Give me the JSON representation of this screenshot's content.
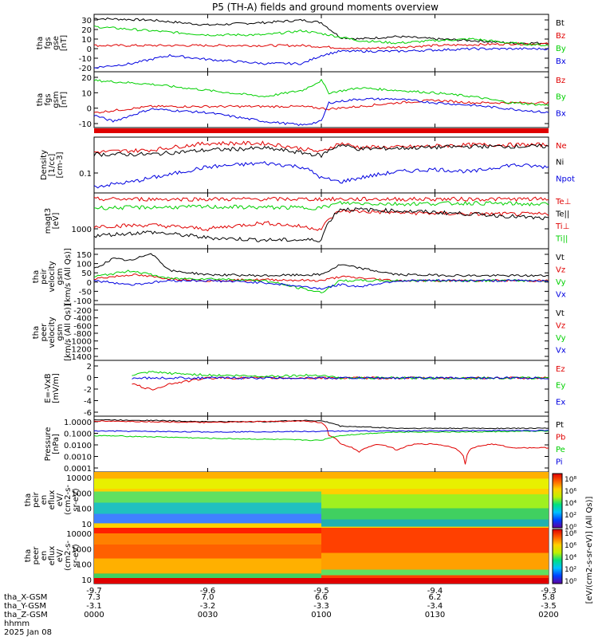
{
  "title": "P5 (TH-A) fields and ground moments overview",
  "colors": {
    "black": "#000000",
    "red": "#e00000",
    "green": "#00d000",
    "blue": "#0000e0"
  },
  "time_axis": {
    "ticks": [
      {
        "x_gsm": "-9.7",
        "y_gsm": "7.3",
        "z_gsm": "-3.1",
        "hhmm": "0000"
      },
      {
        "x_gsm": "-9.6",
        "y_gsm": "7.0",
        "z_gsm": "-3.2",
        "hhmm": "0030"
      },
      {
        "x_gsm": "-9.5",
        "y_gsm": "6.6",
        "z_gsm": "-3.3",
        "hhmm": "0100"
      },
      {
        "x_gsm": "-9.4",
        "y_gsm": "6.2",
        "z_gsm": "-3.4",
        "hhmm": "0130"
      },
      {
        "x_gsm": "-9.3",
        "y_gsm": "5.8",
        "z_gsm": "-3.5",
        "hhmm": "0200"
      }
    ],
    "row_labels": [
      "tha_X-GSM",
      "tha_Y-GSM",
      "tha_Z-GSM",
      "hhmm",
      "2025 Jan 08"
    ]
  },
  "colorbar": {
    "label": "[eV/(cm2-s-sr-eV)] (All Qs)]",
    "upper_ticks": [
      "10⁸",
      "10⁶",
      "10⁴",
      "10²",
      "10⁰"
    ],
    "lower_ticks": [
      "10⁸",
      "10⁶",
      "10⁴",
      "10²",
      "10⁰"
    ]
  },
  "panels": [
    {
      "id": "fgs_gse",
      "ylabel": [
        "tha",
        "fgs",
        "gse",
        "[nT]"
      ],
      "yticks": [
        "30",
        "20",
        "10",
        "0",
        "-10",
        "-20"
      ],
      "legend": [
        {
          "text": "Bt",
          "color": "black"
        },
        {
          "text": "Bz",
          "color": "red"
        },
        {
          "text": "By",
          "color": "green"
        },
        {
          "text": "Bx",
          "color": "blue"
        }
      ]
    },
    {
      "id": "fgs_gsm",
      "ylabel": [
        "tha",
        "fgs",
        "gsm",
        "[nT]"
      ],
      "yticks": [
        "20",
        "10",
        "0",
        "-10"
      ],
      "legend": [
        {
          "text": "Bz",
          "color": "red"
        },
        {
          "text": "By",
          "color": "green"
        },
        {
          "text": "Bx",
          "color": "blue"
        }
      ]
    },
    {
      "id": "density",
      "ylabel": [
        "Density",
        "[1/cc]",
        "[cm-3]"
      ],
      "yticks": [
        "0.1"
      ],
      "legend": [
        {
          "text": "Ne",
          "color": "red"
        },
        {
          "text": "Ni",
          "color": "black"
        },
        {
          "text": "Npot",
          "color": "blue"
        }
      ]
    },
    {
      "id": "temp",
      "ylabel": [
        "magt3",
        "[eV]"
      ],
      "yticks": [
        "1000"
      ],
      "legend": [
        {
          "text": "Te⊥",
          "color": "red"
        },
        {
          "text": "Te||",
          "color": "black"
        },
        {
          "text": "Ti⊥",
          "color": "red"
        },
        {
          "text": "Ti||",
          "color": "green"
        }
      ]
    },
    {
      "id": "peir_vel",
      "ylabel": [
        "tha",
        "peir",
        "velocity",
        "gsm",
        "[km/s (All Qs)]"
      ],
      "yticks": [
        "150",
        "100",
        "50",
        "0",
        "-50",
        "-100"
      ],
      "legend": [
        {
          "text": "Vt",
          "color": "black"
        },
        {
          "text": "Vz",
          "color": "red"
        },
        {
          "text": "Vy",
          "color": "green"
        },
        {
          "text": "Vx",
          "color": "blue"
        }
      ]
    },
    {
      "id": "peer_vel",
      "ylabel": [
        "tha",
        "peer",
        "velocity",
        "gsm",
        "[km/s (All Qs)]"
      ],
      "yticks": [
        "-200",
        "-400",
        "-600",
        "-800",
        "-1000",
        "-1200",
        "-1400"
      ],
      "legend": [
        {
          "text": "Vt",
          "color": "black"
        },
        {
          "text": "Vz",
          "color": "red"
        },
        {
          "text": "Vy",
          "color": "green"
        },
        {
          "text": "Vx",
          "color": "blue"
        }
      ]
    },
    {
      "id": "efield",
      "ylabel": [
        "E=-VxB",
        "[mV/m]"
      ],
      "yticks": [
        "2",
        "0",
        "-2",
        "-4",
        "-6"
      ],
      "legend": [
        {
          "text": "Ez",
          "color": "red"
        },
        {
          "text": "Ey",
          "color": "green"
        },
        {
          "text": "Ex",
          "color": "blue"
        }
      ]
    },
    {
      "id": "pressure",
      "ylabel": [
        "Pressure",
        "[nPa]"
      ],
      "yticks": [
        "1.0000",
        "0.1000",
        "0.0100",
        "0.0010",
        "0.0001"
      ],
      "legend": [
        {
          "text": "Pt",
          "color": "black"
        },
        {
          "text": "Pb",
          "color": "red"
        },
        {
          "text": "Pe",
          "color": "green"
        },
        {
          "text": "Pi",
          "color": "blue"
        }
      ]
    },
    {
      "id": "peir_en",
      "ylabel": [
        "tha",
        "peir",
        "en",
        "eflux",
        "eV/",
        "(cm2-s-",
        "sr-eV)"
      ],
      "yticks": [
        "10000",
        "1000",
        "100",
        "10"
      ],
      "legend": []
    },
    {
      "id": "peer_en",
      "ylabel": [
        "tha",
        "peer",
        "en",
        "eflux",
        "eV/",
        "(cm2-s-",
        "sr-eV)"
      ],
      "yticks": [
        "10000",
        "1000",
        "100",
        "10"
      ],
      "legend": []
    }
  ],
  "chart_data": [
    {
      "type": "line",
      "panel": "fgs_gse",
      "ylim": [
        -30,
        40
      ],
      "series": [
        {
          "name": "Bt",
          "color": "black",
          "x": [
            0,
            15,
            30,
            45,
            55,
            60,
            65,
            70,
            80,
            90,
            100,
            110,
            120
          ],
          "values": [
            35,
            33,
            27,
            30,
            33,
            30,
            12,
            10,
            13,
            10,
            8,
            5,
            5
          ]
        },
        {
          "name": "Bz",
          "color": "red",
          "x": [
            0,
            30,
            55,
            62,
            70,
            80,
            90,
            100,
            110,
            120
          ],
          "values": [
            2,
            2,
            2,
            0,
            -2,
            0,
            2,
            3,
            4,
            4
          ]
        },
        {
          "name": "By",
          "color": "green",
          "x": [
            0,
            15,
            30,
            45,
            55,
            62,
            70,
            80,
            90,
            100,
            110,
            120
          ],
          "values": [
            25,
            20,
            15,
            15,
            20,
            15,
            8,
            5,
            8,
            10,
            5,
            2
          ]
        },
        {
          "name": "Bx",
          "color": "blue",
          "x": [
            0,
            10,
            20,
            30,
            45,
            55,
            60,
            65,
            80,
            100,
            120
          ],
          "values": [
            -25,
            -20,
            -10,
            -15,
            -20,
            -20,
            -10,
            -5,
            -5,
            -2,
            -2
          ]
        }
      ]
    },
    {
      "type": "line",
      "panel": "fgs_gsm",
      "ylim": [
        -20,
        25
      ],
      "series": [
        {
          "name": "Bz",
          "color": "red",
          "x": [
            0,
            15,
            30,
            55,
            62,
            70,
            80,
            90,
            100,
            110,
            120
          ],
          "values": [
            -8,
            -3,
            -3,
            -3,
            -5,
            -3,
            0,
            2,
            0,
            0,
            0
          ]
        },
        {
          "name": "By",
          "color": "green",
          "x": [
            0,
            15,
            30,
            45,
            55,
            60,
            62,
            70,
            80,
            90,
            100,
            110,
            120
          ],
          "values": [
            18,
            15,
            10,
            5,
            10,
            18,
            8,
            12,
            10,
            8,
            5,
            0,
            -2
          ]
        },
        {
          "name": "Bx",
          "color": "blue",
          "x": [
            0,
            5,
            15,
            30,
            45,
            55,
            60,
            62,
            70,
            80,
            90,
            100,
            110,
            120
          ],
          "values": [
            -10,
            -15,
            -5,
            -8,
            -15,
            -18,
            -15,
            0,
            3,
            3,
            0,
            -2,
            -5,
            -8
          ]
        }
      ]
    },
    {
      "type": "line",
      "panel": "density",
      "ylim": [
        0.03,
        0.4
      ],
      "scale": "log",
      "series": [
        {
          "name": "Ne",
          "color": "red",
          "x": [
            0,
            15,
            30,
            45,
            60,
            65,
            70,
            80,
            100,
            120
          ],
          "values": [
            0.2,
            0.22,
            0.3,
            0.3,
            0.2,
            0.3,
            0.25,
            0.25,
            0.28,
            0.28
          ]
        },
        {
          "name": "Ni",
          "color": "black",
          "x": [
            0,
            15,
            30,
            45,
            60,
            65,
            70,
            80,
            100,
            120
          ],
          "values": [
            0.18,
            0.18,
            0.22,
            0.24,
            0.17,
            0.28,
            0.23,
            0.24,
            0.26,
            0.26
          ]
        },
        {
          "name": "Npot",
          "color": "blue",
          "x": [
            0,
            10,
            20,
            30,
            45,
            55,
            60,
            65,
            80,
            90,
            100,
            110,
            120
          ],
          "values": [
            0.04,
            0.05,
            0.07,
            0.1,
            0.12,
            0.1,
            0.06,
            0.05,
            0.08,
            0.09,
            0.08,
            0.11,
            0.1
          ]
        }
      ]
    },
    {
      "type": "line",
      "panel": "temp",
      "ylim": [
        600,
        8000
      ],
      "scale": "log",
      "series": [
        {
          "name": "Te⊥",
          "color": "red",
          "x": [
            0,
            15,
            30,
            45,
            60,
            65,
            80,
            100,
            120
          ],
          "values": [
            1700,
            1800,
            1500,
            2000,
            1500,
            3500,
            3200,
            3000,
            3000
          ]
        },
        {
          "name": "Te||",
          "color": "black",
          "x": [
            0,
            15,
            30,
            45,
            60,
            65,
            80,
            100,
            120
          ],
          "values": [
            1100,
            1300,
            1000,
            900,
            900,
            3800,
            3500,
            3000,
            2400
          ]
        },
        {
          "name": "Ti⊥",
          "color": "red",
          "x": [
            0,
            30,
            60,
            120
          ],
          "values": [
            6000,
            6000,
            6000,
            6000
          ]
        },
        {
          "name": "Ti||",
          "color": "green",
          "x": [
            0,
            30,
            60,
            65,
            80,
            100,
            120
          ],
          "values": [
            4000,
            4200,
            4000,
            5000,
            4800,
            5000,
            4700
          ]
        }
      ]
    },
    {
      "type": "line",
      "panel": "peir_vel",
      "ylim": [
        -120,
        160
      ],
      "series": [
        {
          "name": "Vt",
          "color": "black",
          "x": [
            0,
            5,
            10,
            15,
            20,
            30,
            45,
            60,
            65,
            80,
            100,
            120
          ],
          "values": [
            60,
            110,
            100,
            140,
            50,
            30,
            25,
            30,
            80,
            30,
            25,
            25
          ]
        },
        {
          "name": "Vz",
          "color": "red",
          "x": [
            0,
            10,
            20,
            30,
            45,
            60,
            65,
            80,
            100,
            120
          ],
          "values": [
            10,
            30,
            10,
            0,
            5,
            0,
            20,
            0,
            0,
            0
          ]
        },
        {
          "name": "Vy",
          "color": "green",
          "x": [
            0,
            10,
            20,
            30,
            45,
            60,
            65,
            80,
            100,
            120
          ],
          "values": [
            20,
            50,
            10,
            10,
            0,
            -60,
            0,
            0,
            0,
            0
          ]
        },
        {
          "name": "Vx",
          "color": "blue",
          "x": [
            0,
            10,
            20,
            30,
            45,
            60,
            65,
            70,
            80,
            100,
            120
          ],
          "values": [
            0,
            -20,
            0,
            0,
            -10,
            -40,
            -20,
            -30,
            0,
            0,
            0
          ]
        }
      ]
    },
    {
      "type": "line",
      "panel": "peer_vel",
      "ylim": [
        -1400,
        0
      ],
      "series": []
    },
    {
      "type": "line",
      "panel": "efield",
      "ylim": [
        -6.5,
        3
      ],
      "series": [
        {
          "name": "Ez",
          "color": "red",
          "x": [
            10,
            15,
            20,
            30,
            45,
            60,
            65,
            80,
            100,
            120
          ],
          "values": [
            -1,
            -2,
            -1,
            0,
            0,
            0,
            0,
            0,
            0,
            0
          ]
        },
        {
          "name": "Ey",
          "color": "green",
          "x": [
            10,
            15,
            20,
            30,
            45,
            60,
            65,
            80,
            100,
            120
          ],
          "values": [
            0.5,
            1,
            0.8,
            0.5,
            0.3,
            0.5,
            0,
            0,
            0,
            0
          ]
        },
        {
          "name": "Ex",
          "color": "blue",
          "x": [
            10,
            30,
            60,
            120
          ],
          "values": [
            0,
            0,
            0,
            0
          ]
        }
      ]
    },
    {
      "type": "line",
      "panel": "pressure",
      "ylim": [
        5e-05,
        2
      ],
      "scale": "log",
      "series": [
        {
          "name": "Pt",
          "color": "black",
          "x": [
            0,
            15,
            30,
            45,
            55,
            60,
            65,
            80,
            100,
            120
          ],
          "values": [
            1,
            0.9,
            0.7,
            0.7,
            0.9,
            0.8,
            0.3,
            0.2,
            0.2,
            0.2
          ]
        },
        {
          "name": "Pb",
          "color": "red",
          "x": [
            0,
            30,
            55,
            60,
            62,
            65,
            70,
            75,
            80,
            85,
            90,
            95,
            98,
            100,
            105,
            110,
            120
          ],
          "values": [
            0.8,
            0.6,
            0.8,
            0.6,
            0.05,
            0.01,
            0.002,
            0.01,
            0.003,
            0.01,
            0.01,
            0.005,
            0.0002,
            0.005,
            0.01,
            0.005,
            0.005
          ]
        },
        {
          "name": "Pe",
          "color": "green",
          "x": [
            0,
            30,
            60,
            65,
            80,
            100,
            120
          ],
          "values": [
            0.05,
            0.03,
            0.02,
            0.05,
            0.1,
            0.1,
            0.12
          ]
        },
        {
          "name": "Pi",
          "color": "blue",
          "x": [
            0,
            30,
            60,
            65,
            80,
            100,
            120
          ],
          "values": [
            0.12,
            0.1,
            0.11,
            0.12,
            0.12,
            0.13,
            0.13
          ]
        }
      ]
    }
  ]
}
